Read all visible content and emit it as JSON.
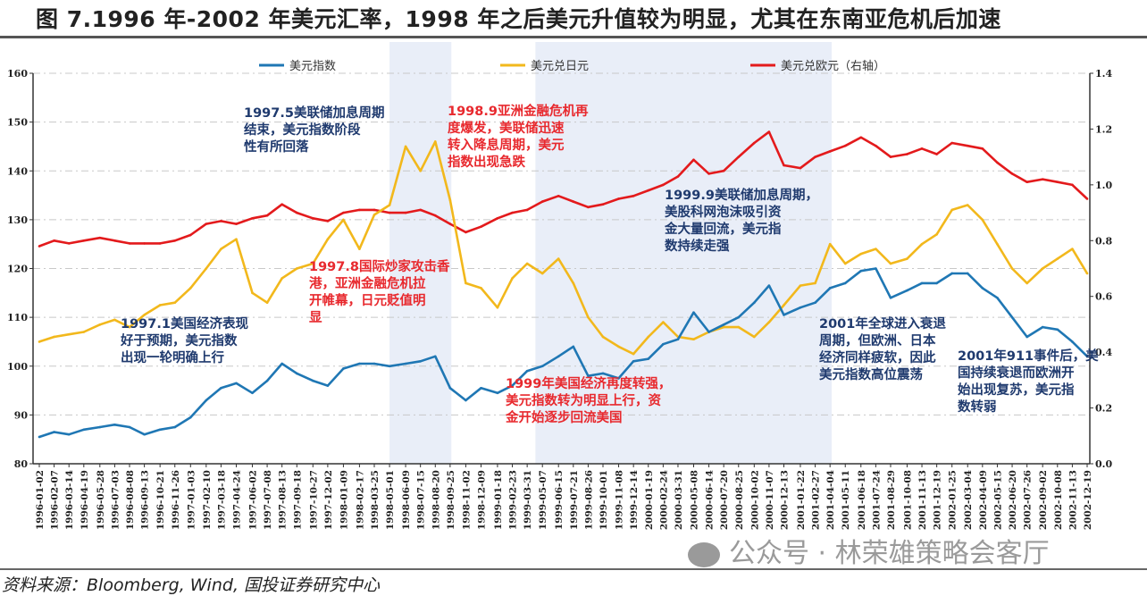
{
  "title": "图 7.1996 年-2002 年美元汇率，1998 年之后美元升值较为明显，尤其在东南亚危机后加速",
  "source": "资料来源：Bloomberg, Wind, 国投证券研究中心",
  "watermark": "公众号 · 林荣雄策略会客厅",
  "chart_data": {
    "type": "line",
    "title": "",
    "xlabel": "",
    "ylabel": "",
    "ylim": [
      80,
      160
    ],
    "y_ticks": [
      "80",
      "90",
      "100",
      "110",
      "120",
      "130",
      "140",
      "150",
      "160"
    ],
    "y2lim": [
      0,
      1.4
    ],
    "y2_ticks": [
      "0.0",
      "0.2",
      "0.4",
      "0.6",
      "0.8",
      "1.0",
      "1.2",
      "1.4"
    ],
    "grid": "horizontal dashed",
    "legend_position": "top",
    "x": [
      "1996-01-02",
      "1996-02-07",
      "1996-03-14",
      "1996-04-19",
      "1996-05-28",
      "1996-07-03",
      "1996-08-08",
      "1996-09-13",
      "1996-10-21",
      "1996-11-26",
      "1997-01-03",
      "1997-02-10",
      "1997-03-18",
      "1997-04-24",
      "1997-06-02",
      "1997-07-08",
      "1997-08-13",
      "1997-09-18",
      "1997-10-27",
      "1997-12-02",
      "1998-01-09",
      "1998-02-17",
      "1998-03-25",
      "1998-05-01",
      "1998-06-09",
      "1998-07-15",
      "1998-08-20",
      "1998-09-25",
      "1998-11-02",
      "1998-12-09",
      "1999-01-18",
      "1999-02-23",
      "1999-03-31",
      "1999-05-07",
      "1999-06-15",
      "1999-07-21",
      "1999-08-26",
      "1999-10-01",
      "1999-11-08",
      "1999-12-14",
      "2000-01-19",
      "2000-02-24",
      "2000-03-31",
      "2000-05-08",
      "2000-06-14",
      "2000-07-20",
      "2000-08-25",
      "2000-10-02",
      "2000-11-07",
      "2000-12-13",
      "2001-01-22",
      "2001-02-27",
      "2001-04-04",
      "2001-05-11",
      "2001-06-18",
      "2001-07-24",
      "2001-08-29",
      "2001-10-08",
      "2001-11-13",
      "2001-12-19",
      "2002-01-25",
      "2002-03-04",
      "2002-04-09",
      "2002-05-15",
      "2002-06-20",
      "2002-07-26",
      "2002-09-02",
      "2002-10-08",
      "2002-11-13",
      "2002-12-19"
    ],
    "series": [
      {
        "name": "美元指数",
        "axis": "left",
        "color": "#1f77b4",
        "values": [
          85.5,
          86.5,
          86,
          87,
          87.5,
          88,
          87.5,
          86,
          87,
          87.5,
          89.5,
          93,
          95.5,
          96.5,
          94.5,
          97,
          100.5,
          98.5,
          97,
          96,
          99.5,
          100.5,
          100.5,
          100,
          100.5,
          101,
          102,
          95.5,
          93,
          95.5,
          94.5,
          96,
          99,
          100,
          102,
          104,
          98,
          98.5,
          97.5,
          101,
          101.5,
          104.5,
          105.5,
          111,
          107,
          108.5,
          110,
          113,
          116.5,
          110.5,
          112,
          113,
          116,
          117,
          119.5,
          120,
          114,
          115.5,
          117,
          117,
          119,
          119,
          116,
          114,
          110,
          106,
          108,
          107.5,
          105,
          102
        ]
      },
      {
        "name": "美元兑日元",
        "axis": "left",
        "color": "#f2b81c",
        "values": [
          105,
          106,
          106.5,
          107,
          108.5,
          109.5,
          108,
          110.5,
          112.5,
          113,
          116,
          120,
          124,
          126,
          115,
          113,
          118,
          120,
          121,
          126,
          130,
          124,
          131,
          133,
          145,
          140,
          146,
          134,
          117,
          116,
          112,
          118,
          121,
          119,
          122,
          117,
          110,
          106,
          104,
          102.5,
          106,
          109,
          106,
          105.5,
          107,
          108,
          108,
          106,
          109,
          112.5,
          116.5,
          117,
          125,
          121,
          123,
          124,
          121,
          122,
          125,
          127,
          132,
          133,
          130,
          125,
          120,
          117,
          120,
          122,
          124,
          119
        ]
      },
      {
        "name": "美元兑欧元（右轴）",
        "axis": "right",
        "color": "#e31a1c",
        "values": [
          0.78,
          0.8,
          0.79,
          0.8,
          0.81,
          0.8,
          0.79,
          0.79,
          0.79,
          0.8,
          0.82,
          0.86,
          0.87,
          0.86,
          0.88,
          0.89,
          0.93,
          0.9,
          0.88,
          0.87,
          0.9,
          0.91,
          0.91,
          0.9,
          0.9,
          0.91,
          0.89,
          0.86,
          0.83,
          0.85,
          0.88,
          0.9,
          0.91,
          0.94,
          0.96,
          0.94,
          0.92,
          0.93,
          0.95,
          0.96,
          0.98,
          1.0,
          1.03,
          1.09,
          1.04,
          1.05,
          1.1,
          1.15,
          1.19,
          1.07,
          1.06,
          1.1,
          1.12,
          1.14,
          1.17,
          1.14,
          1.1,
          1.11,
          1.13,
          1.11,
          1.15,
          1.14,
          1.13,
          1.08,
          1.04,
          1.01,
          1.02,
          1.01,
          1.0,
          0.95
        ]
      }
    ],
    "shaded_periods": [
      [
        "1998-05-01",
        "1998-09-28"
      ],
      [
        "1999-04-20",
        "2001-04-08"
      ]
    ],
    "shade_color": "#e9eef8",
    "annotations": [
      {
        "color": "navy",
        "lines": [
          "1997.5美联储加息周期",
          "结束，美元指数阶段",
          "性有所回落"
        ]
      },
      {
        "color": "red",
        "lines": [
          "1998.9亚洲金融危机再",
          "度爆发，美联储迅速",
          "转入降息周期，美元",
          "指数出现急跌"
        ]
      },
      {
        "color": "navy",
        "lines": [
          "1999.9美联储加息周期，",
          "美股科网泡沫吸引资",
          "金大量回流，美元指",
          "数持续走强"
        ]
      },
      {
        "color": "red",
        "lines": [
          "1997.8国际炒家攻击香",
          "港，亚洲金融危机拉",
          "开帷幕，日元贬值明",
          "显"
        ]
      },
      {
        "color": "navy",
        "lines": [
          "1997.1美国经济表现",
          "好于预期，美元指数",
          "出现一轮明确上行"
        ]
      },
      {
        "color": "red",
        "lines": [
          "1999年美国经济再度转强，",
          "美元指数转为明显上行，资",
          "金开始逐步回流美国"
        ]
      },
      {
        "color": "navy",
        "lines": [
          "2001年全球进入衰退",
          "周期，但欧洲、日本",
          "经济同样疲软，因此",
          "美元指数高位震荡"
        ]
      },
      {
        "color": "navy",
        "lines": [
          "2001年911事件后，美",
          "国持续衰退而欧洲开",
          "始出现复苏，美元指",
          "数转弱"
        ]
      }
    ]
  }
}
